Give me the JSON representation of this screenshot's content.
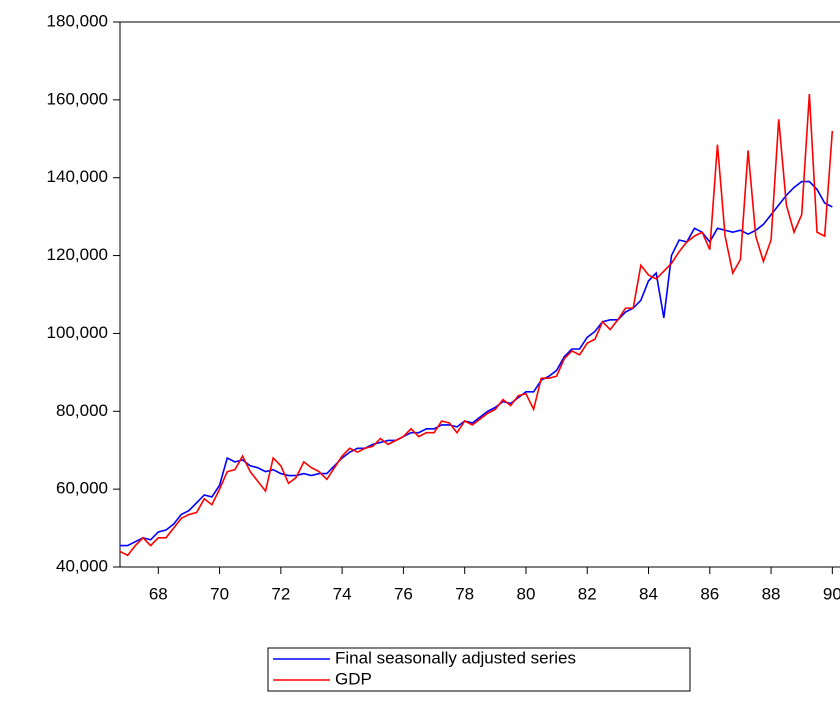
{
  "chart_data": {
    "type": "line",
    "x": [
      1966.75,
      1967,
      1967.25,
      1967.5,
      1967.75,
      1968,
      1968.25,
      1968.5,
      1968.75,
      1969,
      1969.25,
      1969.5,
      1969.75,
      1970,
      1970.25,
      1970.5,
      1970.75,
      1971,
      1971.25,
      1971.5,
      1971.75,
      1972,
      1972.25,
      1972.5,
      1972.75,
      1973,
      1973.25,
      1973.5,
      1973.75,
      1974,
      1974.25,
      1974.5,
      1974.75,
      1975,
      1975.25,
      1975.5,
      1975.75,
      1976,
      1976.25,
      1976.5,
      1976.75,
      1977,
      1977.25,
      1977.5,
      1977.75,
      1978,
      1978.25,
      1978.5,
      1978.75,
      1979,
      1979.25,
      1979.5,
      1979.75,
      1980,
      1980.25,
      1980.5,
      1980.75,
      1981,
      1981.25,
      1981.5,
      1981.75,
      1982,
      1982.25,
      1982.5,
      1982.75,
      1983,
      1983.25,
      1983.5,
      1983.75,
      1984,
      1984.25,
      1984.5,
      1984.75,
      1985,
      1985.25,
      1985.5,
      1985.75,
      1986,
      1986.25,
      1986.5,
      1986.75,
      1987,
      1987.25,
      1987.5,
      1987.75,
      1988,
      1988.25,
      1988.5,
      1988.75,
      1989,
      1989.25,
      1989.5,
      1989.75,
      1990
    ],
    "series": [
      {
        "name": "Final seasonally adjusted series",
        "color": "#0000ff",
        "values": [
          45500,
          45500,
          46500,
          47500,
          47000,
          49000,
          49500,
          51000,
          53500,
          54500,
          56500,
          58500,
          58000,
          61000,
          68000,
          67000,
          67500,
          66000,
          65500,
          64500,
          65000,
          64000,
          63500,
          63500,
          64000,
          63500,
          64000,
          64000,
          66000,
          68000,
          69500,
          70500,
          70500,
          71500,
          72000,
          72500,
          72500,
          73500,
          74500,
          74500,
          75500,
          75500,
          76500,
          76500,
          76000,
          77500,
          77000,
          78500,
          80000,
          81000,
          82500,
          82000,
          83500,
          85000,
          85000,
          88000,
          89000,
          90500,
          94000,
          96000,
          96000,
          99000,
          100500,
          103000,
          103500,
          103500,
          105500,
          106500,
          108500,
          113500,
          115500,
          104000,
          120000,
          124000,
          123500,
          127000,
          126000,
          123500,
          127000,
          126500,
          126000,
          126500,
          125500,
          126500,
          128000,
          130500,
          133000,
          135500,
          137500,
          139000,
          139000,
          137000,
          133500,
          132500
        ]
      },
      {
        "name": "GDP",
        "color": "#ff0000",
        "values": [
          44000,
          43000,
          45500,
          47500,
          45500,
          47500,
          47500,
          50000,
          52500,
          53500,
          54000,
          57500,
          56000,
          60000,
          64500,
          65000,
          68500,
          64500,
          62000,
          59500,
          68000,
          66000,
          61500,
          63000,
          67000,
          65500,
          64500,
          62500,
          65500,
          68500,
          70500,
          69500,
          70500,
          71000,
          73000,
          71500,
          72500,
          73500,
          75500,
          73500,
          74500,
          74500,
          77500,
          77000,
          74500,
          77500,
          76500,
          78000,
          79500,
          80500,
          83000,
          81500,
          84000,
          84500,
          80500,
          88500,
          88500,
          89000,
          93500,
          95500,
          94500,
          97500,
          98500,
          103000,
          101000,
          103500,
          106500,
          106500,
          117500,
          115000,
          114000,
          116000,
          118000,
          121000,
          123500,
          125000,
          126000,
          121500,
          148500,
          125000,
          115500,
          119000,
          147000,
          125000,
          118500,
          124000,
          155000,
          133000,
          126000,
          130500,
          161500,
          126000,
          125000,
          152000
        ]
      }
    ],
    "xlim": [
      1966.75,
      1990.25
    ],
    "xticks": [
      {
        "value": 1968,
        "label": "68"
      },
      {
        "value": 1970,
        "label": "70"
      },
      {
        "value": 1972,
        "label": "72"
      },
      {
        "value": 1974,
        "label": "74"
      },
      {
        "value": 1976,
        "label": "76"
      },
      {
        "value": 1978,
        "label": "78"
      },
      {
        "value": 1980,
        "label": "80"
      },
      {
        "value": 1982,
        "label": "82"
      },
      {
        "value": 1984,
        "label": "84"
      },
      {
        "value": 1986,
        "label": "86"
      },
      {
        "value": 1988,
        "label": "88"
      },
      {
        "value": 1990,
        "label": "90"
      }
    ],
    "ylim": [
      40000,
      180000
    ],
    "yticks": [
      {
        "value": 40000,
        "label": "40,000"
      },
      {
        "value": 60000,
        "label": "60,000"
      },
      {
        "value": 80000,
        "label": "80,000"
      },
      {
        "value": 100000,
        "label": "100,000"
      },
      {
        "value": 120000,
        "label": "120,000"
      },
      {
        "value": 140000,
        "label": "140,000"
      },
      {
        "value": 160000,
        "label": "160,000"
      },
      {
        "value": 180000,
        "label": "180,000"
      }
    ],
    "grid": false,
    "legend": "bottom"
  }
}
